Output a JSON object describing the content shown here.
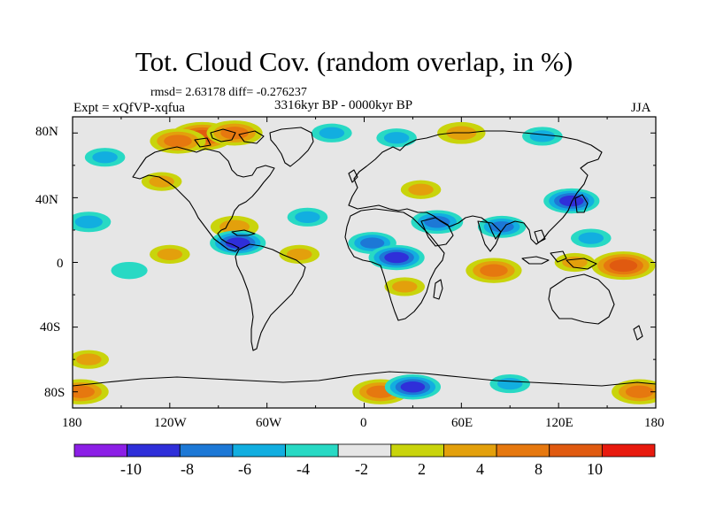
{
  "figure": {
    "title": "Tot. Cloud Cov. (random overlap, in %)",
    "stats": "rmsd= 2.63178 diff= -0.276237",
    "period": "3316kyr BP - 0000kyr BP",
    "experiment": "Expt = xQfVP-xqfua",
    "season": "JJA"
  },
  "axes": {
    "lat_ticks": [
      "80N",
      "40N",
      "0",
      "40S",
      "80S"
    ],
    "lon_ticks": [
      "180",
      "120W",
      "60W",
      "0",
      "60E",
      "120E",
      "180"
    ]
  },
  "colorbar": {
    "labels": [
      "-10",
      "-8",
      "-6",
      "-4",
      "-2",
      "2",
      "4",
      "8",
      "10"
    ],
    "colors": [
      "#8c1fe6",
      "#2f2fd9",
      "#1d78d6",
      "#12aee0",
      "#28d9c4",
      "#e6e6e6",
      "#c9d40c",
      "#e3a00c",
      "#e6780f",
      "#e05a10",
      "#e81a0e"
    ]
  },
  "chart_data": {
    "type": "heatmap",
    "variable": "Tot. Cloud Cov. (random overlap, in %)",
    "x_range": [
      -180,
      180
    ],
    "y_range": [
      -90,
      90
    ],
    "levels": [
      -10,
      -8,
      -6,
      -4,
      -2,
      2,
      4,
      8,
      10
    ],
    "anomaly_regions": [
      {
        "lon": -100,
        "lat": 78,
        "value": 10
      },
      {
        "lon": -115,
        "lat": 75,
        "value": 8
      },
      {
        "lon": -80,
        "lat": 80,
        "value": 8
      },
      {
        "lon": -20,
        "lat": 80,
        "value": -4
      },
      {
        "lon": 20,
        "lat": 77,
        "value": -4
      },
      {
        "lon": 60,
        "lat": 80,
        "value": 6
      },
      {
        "lon": 110,
        "lat": 78,
        "value": -4
      },
      {
        "lon": -160,
        "lat": 65,
        "value": -4
      },
      {
        "lon": -125,
        "lat": 50,
        "value": 4
      },
      {
        "lon": 35,
        "lat": 45,
        "value": 4
      },
      {
        "lon": -170,
        "lat": 25,
        "value": -5
      },
      {
        "lon": -80,
        "lat": 22,
        "value": 6
      },
      {
        "lon": -78,
        "lat": 12,
        "value": -8
      },
      {
        "lon": -35,
        "lat": 28,
        "value": -4
      },
      {
        "lon": -40,
        "lat": 5,
        "value": 4
      },
      {
        "lon": 5,
        "lat": 12,
        "value": -6
      },
      {
        "lon": 20,
        "lat": 3,
        "value": -8
      },
      {
        "lon": 45,
        "lat": 25,
        "value": -7
      },
      {
        "lon": 85,
        "lat": 22,
        "value": -6
      },
      {
        "lon": 128,
        "lat": 38,
        "value": -8
      },
      {
        "lon": 140,
        "lat": 15,
        "value": -4
      },
      {
        "lon": 160,
        "lat": -2,
        "value": 10
      },
      {
        "lon": 130,
        "lat": 0,
        "value": 4
      },
      {
        "lon": 80,
        "lat": -5,
        "value": 8
      },
      {
        "lon": 25,
        "lat": -15,
        "value": 4
      },
      {
        "lon": -120,
        "lat": 5,
        "value": 4
      },
      {
        "lon": -145,
        "lat": -5,
        "value": -3
      },
      {
        "lon": -170,
        "lat": -60,
        "value": 4
      },
      {
        "lon": 10,
        "lat": -80,
        "value": 8
      },
      {
        "lon": 30,
        "lat": -77,
        "value": -8
      },
      {
        "lon": 90,
        "lat": -75,
        "value": -4
      },
      {
        "lon": 170,
        "lat": -80,
        "value": 8
      },
      {
        "lon": -175,
        "lat": -80,
        "value": 8
      }
    ]
  }
}
